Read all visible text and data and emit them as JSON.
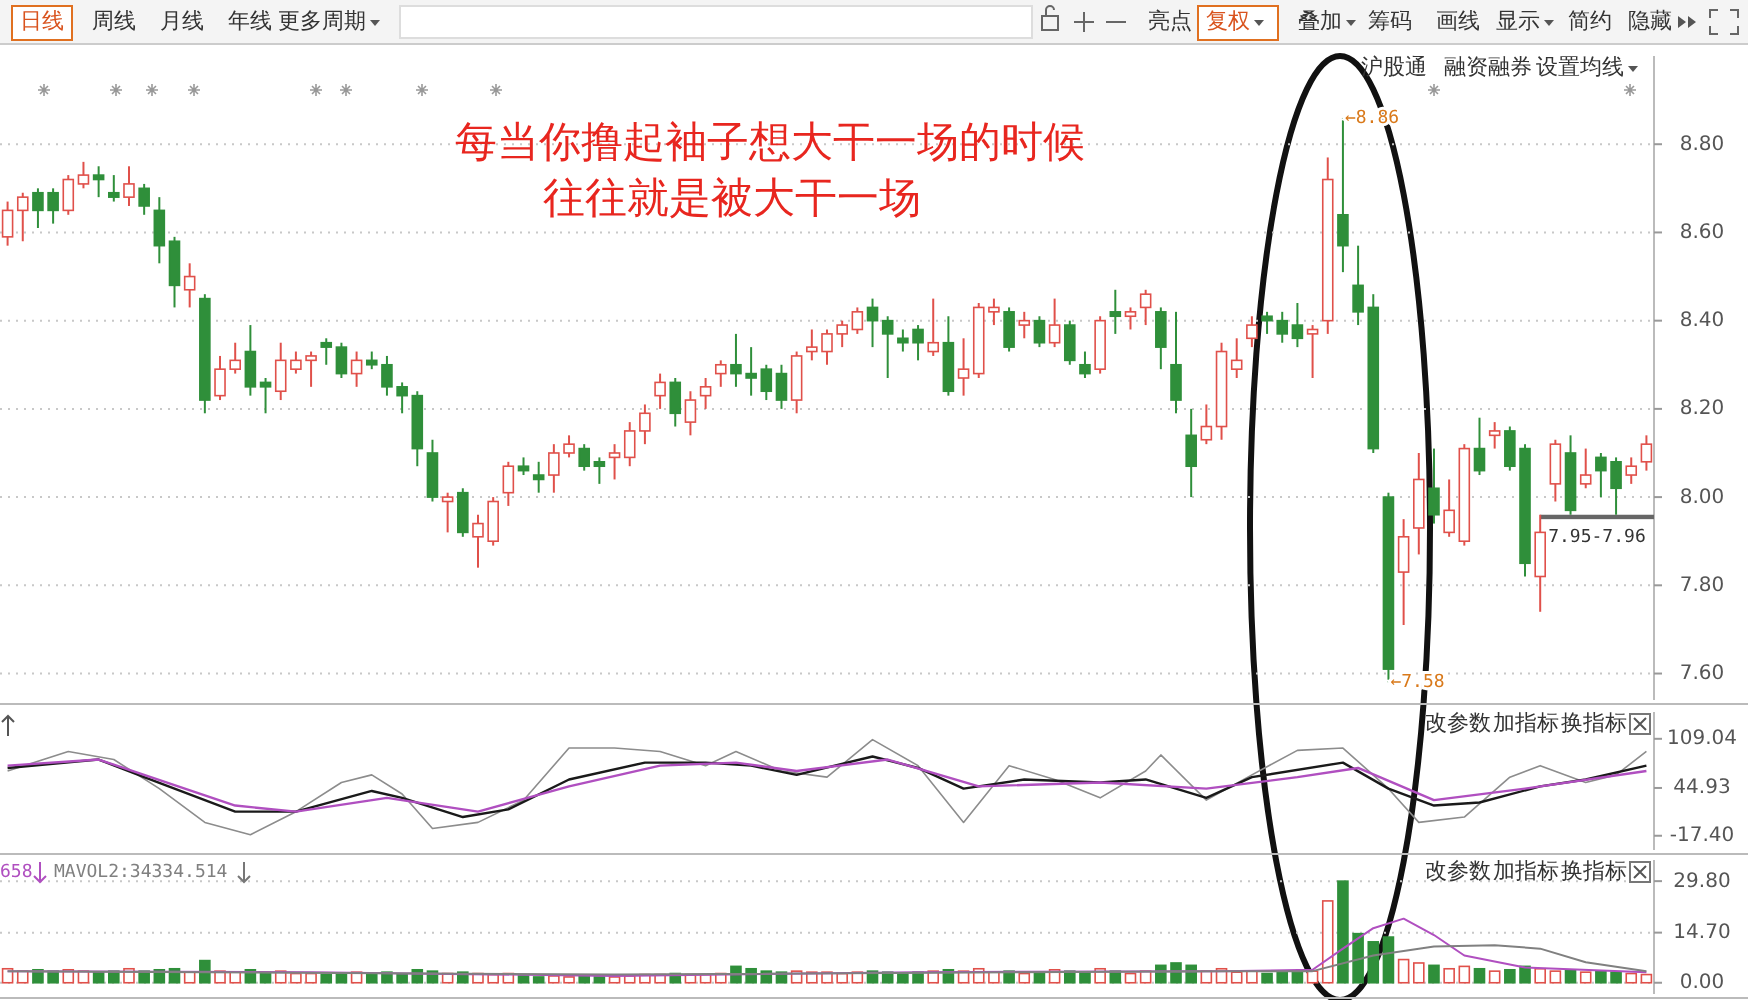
{
  "chart_data": [
    {
      "type": "other",
      "annotations": [
        "日线",
        "周线",
        "月线",
        "年线",
        "更多周期",
        "亮点",
        "复权",
        "叠加",
        "筹码",
        "画线",
        "显示",
        "简约",
        "隐藏",
        "沪股通",
        "融资融券",
        "设置均线"
      ]
    },
    {
      "type": "candlestick",
      "categories": [
        null,
        null,
        null,
        null,
        null,
        null,
        null,
        null,
        null,
        null,
        null,
        null,
        null,
        null,
        null,
        null,
        null,
        null,
        null,
        null,
        null,
        null,
        null,
        null,
        null,
        null,
        null,
        null,
        null,
        null,
        null,
        null,
        null,
        null,
        null,
        null,
        null,
        null,
        null,
        null,
        null,
        null,
        null,
        null,
        null,
        null,
        null,
        null,
        null,
        null,
        null,
        null,
        null,
        null,
        null,
        null,
        null,
        null,
        null,
        null,
        null,
        null,
        null,
        null,
        null,
        null,
        null,
        null,
        null,
        null,
        null,
        null,
        null,
        null,
        null,
        null,
        null,
        null,
        null,
        null,
        null,
        null,
        null,
        null,
        null,
        null,
        null,
        null,
        null,
        null,
        null,
        null,
        null,
        null,
        null,
        null,
        null,
        null,
        null,
        null,
        null,
        null,
        null,
        null,
        null,
        null,
        null,
        null,
        null
      ],
      "ohlc": [
        [
          8.59,
          8.67,
          8.57,
          8.65
        ],
        [
          8.65,
          8.69,
          8.58,
          8.68
        ],
        [
          8.69,
          8.7,
          8.61,
          8.65
        ],
        [
          8.69,
          8.7,
          8.62,
          8.65
        ],
        [
          8.65,
          8.73,
          8.64,
          8.72
        ],
        [
          8.71,
          8.76,
          8.7,
          8.73
        ],
        [
          8.73,
          8.75,
          8.68,
          8.72
        ],
        [
          8.69,
          8.73,
          8.67,
          8.68
        ],
        [
          8.68,
          8.75,
          8.66,
          8.71
        ],
        [
          8.7,
          8.71,
          8.64,
          8.66
        ],
        [
          8.65,
          8.68,
          8.53,
          8.57
        ],
        [
          8.58,
          8.59,
          8.43,
          8.48
        ],
        [
          8.47,
          8.53,
          8.43,
          8.5
        ],
        [
          8.45,
          8.46,
          8.19,
          8.22
        ],
        [
          8.23,
          8.32,
          8.22,
          8.29
        ],
        [
          8.29,
          8.35,
          8.28,
          8.31
        ],
        [
          8.33,
          8.39,
          8.23,
          8.25
        ],
        [
          8.26,
          8.27,
          8.19,
          8.25
        ],
        [
          8.24,
          8.35,
          8.22,
          8.31
        ],
        [
          8.29,
          8.33,
          8.28,
          8.31
        ],
        [
          8.31,
          8.33,
          8.25,
          8.32
        ],
        [
          8.35,
          8.36,
          8.3,
          8.34
        ],
        [
          8.34,
          8.35,
          8.27,
          8.28
        ],
        [
          8.28,
          8.33,
          8.25,
          8.31
        ],
        [
          8.31,
          8.33,
          8.29,
          8.3
        ],
        [
          8.3,
          8.32,
          8.23,
          8.25
        ],
        [
          8.25,
          8.26,
          8.19,
          8.23
        ],
        [
          8.23,
          8.24,
          8.07,
          8.11
        ],
        [
          8.1,
          8.13,
          7.99,
          8.0
        ],
        [
          7.99,
          8.01,
          7.92,
          8.0
        ],
        [
          8.01,
          8.02,
          7.91,
          7.92
        ],
        [
          7.91,
          7.96,
          7.84,
          7.94
        ],
        [
          7.9,
          8.0,
          7.89,
          7.99
        ],
        [
          8.01,
          8.08,
          7.98,
          8.07
        ],
        [
          8.07,
          8.09,
          8.05,
          8.06
        ],
        [
          8.05,
          8.08,
          8.01,
          8.04
        ],
        [
          8.05,
          8.12,
          8.01,
          8.1
        ],
        [
          8.1,
          8.14,
          8.09,
          8.12
        ],
        [
          8.11,
          8.12,
          8.06,
          8.07
        ],
        [
          8.08,
          8.09,
          8.03,
          8.07
        ],
        [
          8.09,
          8.12,
          8.04,
          8.1
        ],
        [
          8.09,
          8.17,
          8.07,
          8.15
        ],
        [
          8.15,
          8.21,
          8.12,
          8.19
        ],
        [
          8.23,
          8.28,
          8.2,
          8.26
        ],
        [
          8.26,
          8.27,
          8.16,
          8.19
        ],
        [
          8.17,
          8.24,
          8.14,
          8.22
        ],
        [
          8.23,
          8.27,
          8.2,
          8.25
        ],
        [
          8.28,
          8.31,
          8.25,
          8.3
        ],
        [
          8.3,
          8.37,
          8.25,
          8.28
        ],
        [
          8.28,
          8.34,
          8.23,
          8.27
        ],
        [
          8.29,
          8.3,
          8.22,
          8.24
        ],
        [
          8.28,
          8.3,
          8.2,
          8.22
        ],
        [
          8.22,
          8.33,
          8.19,
          8.32
        ],
        [
          8.33,
          8.38,
          8.31,
          8.34
        ],
        [
          8.33,
          8.38,
          8.3,
          8.37
        ],
        [
          8.37,
          8.4,
          8.34,
          8.39
        ],
        [
          8.38,
          8.43,
          8.37,
          8.42
        ],
        [
          8.43,
          8.45,
          8.34,
          8.4
        ],
        [
          8.4,
          8.41,
          8.27,
          8.37
        ],
        [
          8.36,
          8.38,
          8.33,
          8.35
        ],
        [
          8.38,
          8.39,
          8.31,
          8.35
        ],
        [
          8.33,
          8.45,
          8.32,
          8.35
        ],
        [
          8.35,
          8.41,
          8.23,
          8.24
        ],
        [
          8.27,
          8.36,
          8.23,
          8.29
        ],
        [
          8.28,
          8.44,
          8.27,
          8.43
        ],
        [
          8.42,
          8.45,
          8.39,
          8.43
        ],
        [
          8.42,
          8.43,
          8.33,
          8.34
        ],
        [
          8.39,
          8.42,
          8.36,
          8.4
        ],
        [
          8.4,
          8.41,
          8.34,
          8.35
        ],
        [
          8.35,
          8.45,
          8.34,
          8.39
        ],
        [
          8.39,
          8.4,
          8.3,
          8.31
        ],
        [
          8.3,
          8.33,
          8.27,
          8.28
        ],
        [
          8.29,
          8.41,
          8.28,
          8.4
        ],
        [
          8.42,
          8.47,
          8.37,
          8.41
        ],
        [
          8.41,
          8.43,
          8.38,
          8.42
        ],
        [
          8.43,
          8.47,
          8.39,
          8.46
        ],
        [
          8.42,
          8.43,
          8.29,
          8.34
        ],
        [
          8.3,
          8.42,
          8.19,
          8.22
        ],
        [
          8.14,
          8.2,
          8.0,
          8.07
        ],
        [
          8.13,
          8.21,
          8.12,
          8.16
        ],
        [
          8.16,
          8.35,
          8.13,
          8.33
        ],
        [
          8.29,
          8.36,
          8.27,
          8.31
        ],
        [
          8.36,
          8.41,
          8.34,
          8.39
        ],
        [
          8.41,
          8.42,
          8.37,
          8.4
        ],
        [
          8.4,
          8.42,
          8.35,
          8.37
        ],
        [
          8.39,
          8.44,
          8.34,
          8.36
        ],
        [
          8.37,
          8.39,
          8.27,
          8.38
        ],
        [
          8.4,
          8.77,
          8.37,
          8.72
        ],
        [
          8.64,
          8.86,
          8.51,
          8.57
        ],
        [
          8.48,
          8.57,
          8.39,
          8.42
        ],
        [
          8.43,
          8.46,
          8.1,
          8.11
        ],
        [
          8.0,
          8.01,
          7.58,
          7.61
        ],
        [
          7.83,
          7.95,
          7.71,
          7.91
        ],
        [
          7.93,
          8.1,
          7.87,
          8.04
        ],
        [
          8.02,
          8.11,
          7.94,
          7.96
        ],
        [
          7.92,
          8.04,
          7.91,
          7.97
        ],
        [
          7.9,
          8.12,
          7.89,
          8.11
        ],
        [
          8.11,
          8.18,
          8.05,
          8.06
        ],
        [
          8.14,
          8.17,
          8.11,
          8.15
        ],
        [
          8.15,
          8.16,
          8.06,
          8.07
        ],
        [
          8.11,
          8.12,
          7.82,
          7.85
        ],
        [
          7.82,
          7.96,
          7.74,
          7.92
        ],
        [
          8.03,
          8.13,
          7.99,
          8.12
        ],
        [
          8.1,
          8.14,
          7.96,
          7.97
        ],
        [
          8.03,
          8.11,
          8.02,
          8.05
        ],
        [
          8.09,
          8.1,
          8.0,
          8.06
        ],
        [
          8.08,
          8.09,
          7.96,
          8.02
        ],
        [
          8.05,
          8.09,
          8.03,
          8.07
        ],
        [
          8.08,
          8.14,
          8.06,
          8.12
        ]
      ],
      "ylim": [
        7.54,
        9.0
      ],
      "yticks": [
        {
          "value": 7.6,
          "label": "7.60"
        },
        {
          "value": 7.8,
          "label": "7.80"
        },
        {
          "value": 8.0,
          "label": "8.00"
        },
        {
          "value": 8.2,
          "label": "8.20"
        },
        {
          "value": 8.4,
          "label": "8.40"
        },
        {
          "value": 8.6,
          "label": "8.60"
        },
        {
          "value": 8.8,
          "label": "8.80"
        }
      ],
      "grid": "y",
      "tick_labels": "y",
      "bands": [
        {
          "axis": "y",
          "from": 7.95,
          "to": 7.96,
          "label": "7.95-7.96",
          "color": "#666666"
        }
      ],
      "annotations": [
        "每当你撸起袖子想大干一场的时候",
        "往往就是被大干一场",
        "←8.86",
        "←7.58"
      ]
    },
    {
      "type": "line",
      "categories": [
        null,
        null,
        null,
        null,
        null,
        null,
        null,
        null,
        null,
        null,
        null,
        null,
        null,
        null,
        null,
        null,
        null,
        null,
        null,
        null,
        null,
        null,
        null,
        null,
        null,
        null,
        null,
        null,
        null,
        null,
        null,
        null,
        null,
        null,
        null,
        null,
        null,
        null,
        null,
        null,
        null,
        null,
        null,
        null,
        null,
        null,
        null,
        null,
        null,
        null,
        null,
        null,
        null,
        null,
        null,
        null,
        null,
        null,
        null,
        null,
        null,
        null,
        null,
        null,
        null,
        null,
        null,
        null,
        null,
        null,
        null,
        null,
        null,
        null,
        null,
        null,
        null,
        null,
        null,
        null,
        null,
        null,
        null,
        null,
        null,
        null,
        null,
        null,
        null,
        null,
        null,
        null,
        null,
        null,
        null,
        null,
        null,
        null,
        null,
        null,
        null,
        null,
        null,
        null,
        null,
        null,
        null,
        null,
        null
      ],
      "ylim": [
        -36,
        144
      ],
      "yticks": [
        {
          "value": -17.4,
          "label": "-17.40"
        },
        {
          "value": 44.93,
          "label": "44.93"
        },
        {
          "value": 109.04,
          "label": "109.04"
        }
      ],
      "tick_labels": "y",
      "series": [
        {
          "color": "#8c8c8c",
          "values": [
            67,
            null,
            null,
            null,
            92.5,
            null,
            null,
            82,
            null,
            null,
            44,
            null,
            null,
            0,
            null,
            null,
            -16,
            null,
            null,
            14,
            null,
            null,
            52,
            null,
            62,
            null,
            37,
            null,
            -8,
            null,
            null,
            0,
            null,
            null,
            29,
            null,
            null,
            97,
            null,
            null,
            97,
            null,
            null,
            92.5,
            null,
            null,
            74,
            null,
            92.5,
            null,
            null,
            67,
            null,
            null,
            59,
            null,
            null,
            108,
            null,
            null,
            74,
            null,
            null,
            0,
            null,
            null,
            74,
            null,
            null,
            56,
            null,
            null,
            32,
            null,
            null,
            67,
            88,
            null,
            null,
            29,
            null,
            null,
            62,
            null,
            null,
            94,
            null,
            null,
            97,
            null,
            null,
            44,
            null,
            0,
            null,
            null,
            7,
            null,
            null,
            59,
            null,
            74,
            null,
            null,
            52,
            null,
            62,
            null,
            92.5
          ]
        },
        {
          "color": "#1a1a1a",
          "values": [
            71,
            null,
            null,
            null,
            null,
            null,
            82,
            null,
            null,
            59,
            null,
            null,
            null,
            null,
            null,
            14,
            null,
            null,
            null,
            14,
            null,
            null,
            null,
            null,
            41,
            null,
            32,
            null,
            null,
            null,
            7,
            null,
            null,
            17,
            null,
            null,
            null,
            56,
            null,
            null,
            null,
            null,
            78,
            null,
            null,
            null,
            78,
            null,
            null,
            74,
            null,
            null,
            62,
            null,
            null,
            null,
            null,
            86,
            null,
            null,
            71,
            null,
            null,
            44,
            null,
            null,
            null,
            56,
            null,
            null,
            null,
            null,
            52,
            null,
            null,
            56,
            null,
            null,
            null,
            32,
            null,
            null,
            59,
            null,
            null,
            null,
            null,
            null,
            78,
            null,
            null,
            44,
            null,
            null,
            22,
            null,
            null,
            26,
            null,
            null,
            null,
            47,
            null,
            null,
            56,
            null,
            null,
            null,
            74
          ]
        },
        {
          "color": "#b04fc0",
          "values": [
            74,
            null,
            null,
            null,
            null,
            null,
            82,
            null,
            null,
            null,
            null,
            null,
            null,
            null,
            null,
            22,
            null,
            null,
            null,
            14,
            null,
            null,
            null,
            null,
            null,
            32,
            null,
            null,
            null,
            null,
            null,
            14,
            null,
            null,
            null,
            null,
            null,
            47,
            null,
            null,
            null,
            null,
            null,
            74,
            null,
            null,
            null,
            null,
            78,
            null,
            null,
            null,
            67,
            null,
            null,
            null,
            null,
            null,
            82,
            null,
            null,
            null,
            null,
            null,
            47,
            null,
            null,
            null,
            null,
            null,
            null,
            null,
            52,
            null,
            null,
            null,
            null,
            null,
            null,
            44,
            null,
            null,
            null,
            null,
            null,
            59,
            null,
            null,
            null,
            71,
            null,
            null,
            null,
            null,
            29,
            null,
            null,
            null,
            null,
            null,
            44,
            null,
            null,
            null,
            null,
            null,
            null,
            null,
            67
          ]
        }
      ],
      "annotations": [
        "改参数",
        "加指标",
        "换指标"
      ]
    },
    {
      "type": "bar",
      "categories": [
        null,
        null,
        null,
        null,
        null,
        null,
        null,
        null,
        null,
        null,
        null,
        null,
        null,
        null,
        null,
        null,
        null,
        null,
        null,
        null,
        null,
        null,
        null,
        null,
        null,
        null,
        null,
        null,
        null,
        null,
        null,
        null,
        null,
        null,
        null,
        null,
        null,
        null,
        null,
        null,
        null,
        null,
        null,
        null,
        null,
        null,
        null,
        null,
        null,
        null,
        null,
        null,
        null,
        null,
        null,
        null,
        null,
        null,
        null,
        null,
        null,
        null,
        null,
        null,
        null,
        null,
        null,
        null,
        null,
        null,
        null,
        null,
        null,
        null,
        null,
        null,
        null,
        null,
        null,
        null,
        null,
        null,
        null,
        null,
        null,
        null,
        null,
        null,
        null,
        null,
        null,
        null,
        null,
        null,
        null,
        null,
        null,
        null,
        null,
        null,
        null,
        null,
        null,
        null,
        null,
        null,
        null,
        null,
        null
      ],
      "ylim": [
        -3.3,
        36
      ],
      "yticks": [
        {
          "value": 0,
          "label": "0.00"
        },
        {
          "value": 14.7,
          "label": "14.70"
        },
        {
          "value": 29.8,
          "label": "29.80"
        }
      ],
      "grid": "y",
      "tick_labels": "y",
      "series": [
        {
          "type": "bar",
          "colors": [
            "#e0504a",
            "#e0504a",
            "#2f8f3a",
            "#2f8f3a",
            "#e0504a",
            "#e0504a",
            "#2f8f3a",
            "#2f8f3a",
            "#e0504a",
            "#2f8f3a",
            "#2f8f3a",
            "#2f8f3a",
            "#e0504a",
            "#2f8f3a",
            "#e0504a",
            "#e0504a",
            "#2f8f3a",
            "#2f8f3a",
            "#e0504a",
            "#e0504a",
            "#e0504a",
            "#2f8f3a",
            "#2f8f3a",
            "#e0504a",
            "#2f8f3a",
            "#2f8f3a",
            "#2f8f3a",
            "#2f8f3a",
            "#2f8f3a",
            "#e0504a",
            "#2f8f3a",
            "#e0504a",
            "#e0504a",
            "#e0504a",
            "#2f8f3a",
            "#2f8f3a",
            "#e0504a",
            "#e0504a",
            "#2f8f3a",
            "#2f8f3a",
            "#e0504a",
            "#e0504a",
            "#e0504a",
            "#e0504a",
            "#2f8f3a",
            "#e0504a",
            "#e0504a",
            "#e0504a",
            "#2f8f3a",
            "#2f8f3a",
            "#2f8f3a",
            "#2f8f3a",
            "#e0504a",
            "#e0504a",
            "#e0504a",
            "#e0504a",
            "#e0504a",
            "#2f8f3a",
            "#2f8f3a",
            "#2f8f3a",
            "#2f8f3a",
            "#e0504a",
            "#2f8f3a",
            "#e0504a",
            "#e0504a",
            "#e0504a",
            "#2f8f3a",
            "#e0504a",
            "#2f8f3a",
            "#e0504a",
            "#2f8f3a",
            "#2f8f3a",
            "#e0504a",
            "#2f8f3a",
            "#e0504a",
            "#e0504a",
            "#2f8f3a",
            "#2f8f3a",
            "#2f8f3a",
            "#e0504a",
            "#e0504a",
            "#e0504a",
            "#e0504a",
            "#2f8f3a",
            "#2f8f3a",
            "#2f8f3a",
            "#e0504a",
            "#e0504a",
            "#2f8f3a",
            "#2f8f3a",
            "#2f8f3a",
            "#2f8f3a",
            "#e0504a",
            "#e0504a",
            "#2f8f3a",
            "#e0504a",
            "#e0504a",
            "#2f8f3a",
            "#e0504a",
            "#2f8f3a",
            "#2f8f3a",
            "#e0504a",
            "#e0504a",
            "#2f8f3a",
            "#e0504a",
            "#2f8f3a",
            "#2f8f3a",
            "#e0504a",
            "#e0504a"
          ],
          "values": [
            4.1,
            3.4,
            3.8,
            3.4,
            3.8,
            3.4,
            3.1,
            3.4,
            4.1,
            3.4,
            3.8,
            4.1,
            3.1,
            6.5,
            3.4,
            3.1,
            3.8,
            3.1,
            3.4,
            2.7,
            2.7,
            2.4,
            2.7,
            3.1,
            2.4,
            3.1,
            2.4,
            3.8,
            3.4,
            2.7,
            3.1,
            2.7,
            2.4,
            2.7,
            2.0,
            1.7,
            2.0,
            1.7,
            2.0,
            1.7,
            1.7,
            2.0,
            2.4,
            2.4,
            2.7,
            2.4,
            2.4,
            2.7,
            4.8,
            4.1,
            3.4,
            3.1,
            3.4,
            3.1,
            3.1,
            2.7,
            3.1,
            3.4,
            3.1,
            2.7,
            3.1,
            3.4,
            3.8,
            3.4,
            4.1,
            3.1,
            3.4,
            2.7,
            3.1,
            3.8,
            3.4,
            3.1,
            4.1,
            3.4,
            2.7,
            3.4,
            5.1,
            5.8,
            5.1,
            3.4,
            4.1,
            3.1,
            3.4,
            2.7,
            3.1,
            3.1,
            3.4,
            24.0,
            29.8,
            14.4,
            12.0,
            13.4,
            6.8,
            5.8,
            5.1,
            4.1,
            4.8,
            4.1,
            3.4,
            3.8,
            4.8,
            4.1,
            3.4,
            3.8,
            3.1,
            3.4,
            3.1,
            2.7,
            2.4
          ]
        },
        {
          "type": "line",
          "color": "#b04fc0",
          "values": [
            3.4,
            null,
            null,
            null,
            null,
            null,
            null,
            null,
            null,
            null,
            null,
            null,
            null,
            null,
            null,
            null,
            null,
            null,
            null,
            null,
            3.1,
            null,
            null,
            null,
            null,
            null,
            null,
            null,
            null,
            null,
            null,
            null,
            null,
            null,
            null,
            null,
            null,
            null,
            null,
            null,
            2.0,
            null,
            null,
            null,
            null,
            null,
            null,
            null,
            null,
            null,
            null,
            null,
            null,
            null,
            null,
            null,
            null,
            null,
            null,
            null,
            3.1,
            null,
            null,
            null,
            null,
            null,
            null,
            null,
            null,
            null,
            null,
            null,
            null,
            null,
            null,
            null,
            null,
            null,
            null,
            null,
            3.4,
            null,
            null,
            null,
            null,
            null,
            3.8,
            null,
            10,
            null,
            16,
            null,
            18.8,
            null,
            14,
            null,
            8,
            null,
            null,
            null,
            4.5,
            null,
            null,
            null,
            null,
            null,
            null,
            null,
            3.1
          ]
        },
        {
          "type": "line",
          "color": "#808080",
          "values": [
            3.4,
            null,
            null,
            null,
            null,
            null,
            null,
            null,
            null,
            null,
            null,
            null,
            null,
            null,
            null,
            null,
            null,
            null,
            null,
            null,
            null,
            null,
            null,
            null,
            null,
            null,
            null,
            null,
            null,
            null,
            null,
            null,
            null,
            null,
            null,
            null,
            null,
            null,
            null,
            null,
            2.4,
            null,
            null,
            null,
            null,
            null,
            null,
            null,
            null,
            null,
            null,
            null,
            null,
            null,
            null,
            null,
            null,
            null,
            null,
            null,
            null,
            null,
            null,
            null,
            null,
            null,
            null,
            null,
            null,
            null,
            null,
            null,
            null,
            null,
            null,
            null,
            null,
            null,
            null,
            null,
            3.4,
            null,
            null,
            null,
            null,
            null,
            3.4,
            null,
            null,
            null,
            8,
            null,
            null,
            null,
            10.6,
            null,
            null,
            null,
            11,
            null,
            null,
            10,
            null,
            null,
            6,
            null,
            null,
            null,
            3.4
          ]
        }
      ],
      "annotations": [
        "658",
        "MAVOL2:34334.514",
        "改参数",
        "加指标",
        "换指标"
      ]
    }
  ]
}
